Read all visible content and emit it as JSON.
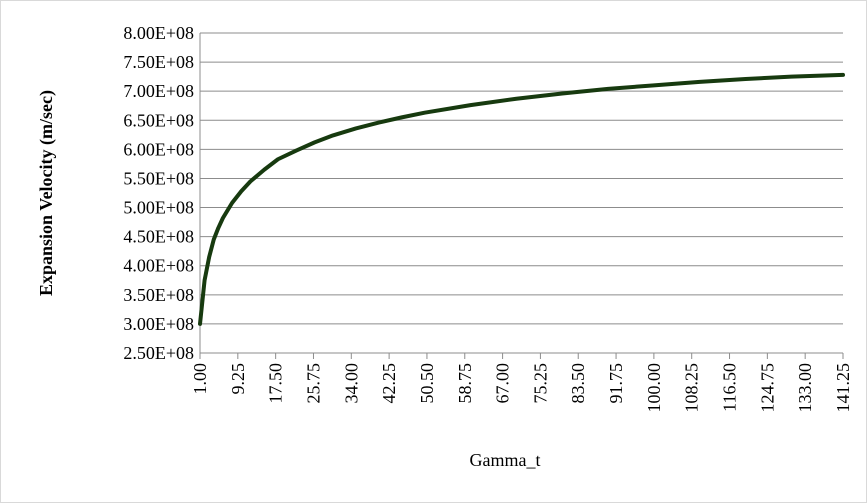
{
  "chart_data": {
    "type": "line",
    "xlabel": "Gamma_t",
    "ylabel": "Expansion Velocity  (m/sec)",
    "x": [
      1,
      2,
      3,
      4,
      5,
      6,
      8,
      10,
      12,
      15,
      18,
      22,
      26,
      30,
      35,
      40,
      45,
      50,
      60,
      70,
      80,
      90,
      100,
      110,
      120,
      130,
      141.25
    ],
    "series": [
      {
        "name": "Expansion Velocity",
        "color": "#173a0f",
        "values": [
          300000000,
          375000000,
          415000000,
          445000000,
          465000000,
          482000000,
          508000000,
          528000000,
          545000000,
          565000000,
          583000000,
          598000000,
          612000000,
          624000000,
          636000000,
          646000000,
          655000000,
          663000000,
          676000000,
          687000000,
          696000000,
          704000000,
          710000000,
          716000000,
          721000000,
          725000000,
          728000000
        ]
      }
    ],
    "xlim": [
      1,
      141.25
    ],
    "xticks": [
      {
        "value": 1,
        "label": "1.00"
      },
      {
        "value": 9.25,
        "label": "9.25"
      },
      {
        "value": 17.5,
        "label": "17.50"
      },
      {
        "value": 25.75,
        "label": "25.75"
      },
      {
        "value": 34,
        "label": "34.00"
      },
      {
        "value": 42.25,
        "label": "42.25"
      },
      {
        "value": 50.5,
        "label": "50.50"
      },
      {
        "value": 58.75,
        "label": "58.75"
      },
      {
        "value": 67,
        "label": "67.00"
      },
      {
        "value": 75.25,
        "label": "75.25"
      },
      {
        "value": 83.5,
        "label": "83.50"
      },
      {
        "value": 91.75,
        "label": "91.75"
      },
      {
        "value": 100,
        "label": "100.00"
      },
      {
        "value": 108.25,
        "label": "108.25"
      },
      {
        "value": 116.5,
        "label": "116.50"
      },
      {
        "value": 124.75,
        "label": "124.75"
      },
      {
        "value": 133,
        "label": "133.00"
      },
      {
        "value": 141.25,
        "label": "141.25"
      }
    ],
    "ylim": [
      250000000,
      800000000
    ],
    "yticks": [
      {
        "value": 250000000,
        "label": "2.50E+08"
      },
      {
        "value": 300000000,
        "label": "3.00E+08"
      },
      {
        "value": 350000000,
        "label": "3.50E+08"
      },
      {
        "value": 400000000,
        "label": "4.00E+08"
      },
      {
        "value": 450000000,
        "label": "4.50E+08"
      },
      {
        "value": 500000000,
        "label": "5.00E+08"
      },
      {
        "value": 550000000,
        "label": "5.50E+08"
      },
      {
        "value": 600000000,
        "label": "6.00E+08"
      },
      {
        "value": 650000000,
        "label": "6.50E+08"
      },
      {
        "value": 700000000,
        "label": "7.00E+08"
      },
      {
        "value": 750000000,
        "label": "7.50E+08"
      },
      {
        "value": 800000000,
        "label": "8.00E+08"
      }
    ],
    "grid": true
  }
}
